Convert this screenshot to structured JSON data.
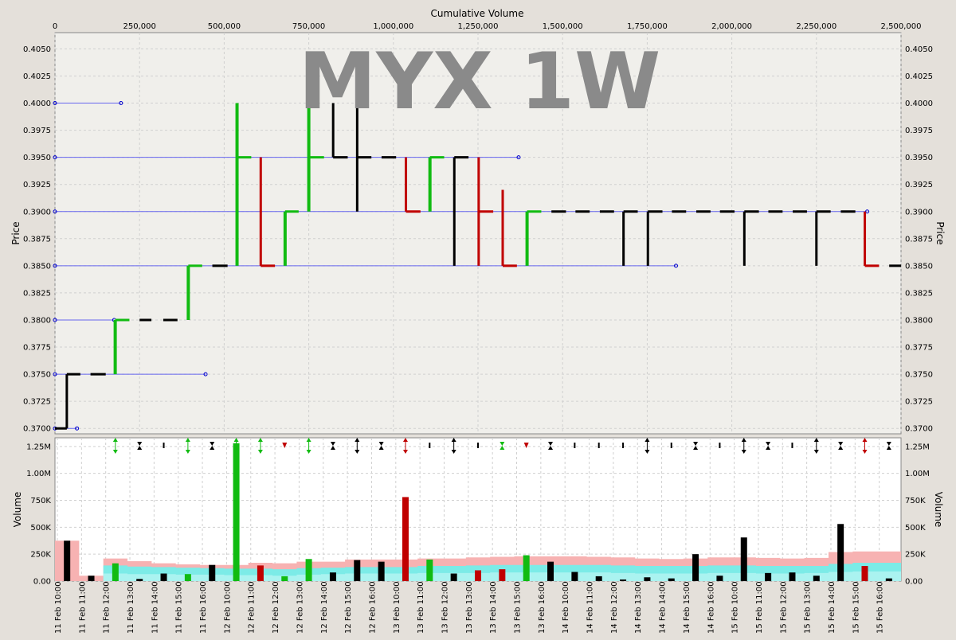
{
  "watermark": "MYX 1W",
  "top_axis_label": "Cumulative Volume",
  "price_axis_label": "Price",
  "volume_axis_label": "Volume",
  "colors": {
    "up": "#11bb11",
    "down": "#c00000",
    "flat": "#000000",
    "level": "#6666ee",
    "band_outer": "#f7b2b2",
    "band_inner": "#66f5f0",
    "panel": "#f0efeb",
    "grid": "#d0d0d0"
  },
  "chart_data": [
    {
      "type": "line",
      "name": "price-by-cumulative-volume",
      "x_title": "Cumulative Volume",
      "y_title": "Price",
      "xlim": [
        0,
        2500000
      ],
      "ylim": [
        0.3695,
        0.4065
      ],
      "x_ticks": [
        0,
        250000,
        500000,
        750000,
        1000000,
        1250000,
        1500000,
        1750000,
        2000000,
        2250000,
        2500000
      ],
      "x_tick_labels": [
        "0",
        "250,000",
        "500,000",
        "750,000",
        "1,000,000",
        "1,250,000",
        "1,500,000",
        "1,750,000",
        "2,000,000",
        "2,250,000",
        "2,500,000"
      ],
      "y_ticks": [
        0.405,
        0.4025,
        0.4,
        0.3975,
        0.395,
        0.3925,
        0.39,
        0.3875,
        0.385,
        0.3825,
        0.38,
        0.3775,
        0.375,
        0.3725,
        0.37
      ],
      "y_tick_labels": [
        "0.4050",
        "0.4025",
        "0.4000",
        "0.3975",
        "0.3950",
        "0.3925",
        "0.3900",
        "0.3875",
        "0.3850",
        "0.3825",
        "0.3800",
        "0.3775",
        "0.3750",
        "0.3725",
        "0.3700"
      ],
      "grid": true,
      "price_levels": [
        {
          "price": 0.4,
          "x_end": 195000
        },
        {
          "price": 0.395,
          "x_end": 1370000
        },
        {
          "price": 0.39,
          "x_end": 2400000
        },
        {
          "price": 0.385,
          "x_end": 1835000
        },
        {
          "price": 0.38,
          "x_end": 175000
        },
        {
          "price": 0.375,
          "x_end": 445000
        },
        {
          "price": 0.37,
          "x_end": 65000
        }
      ],
      "bars": [
        {
          "x0": 0,
          "x1": 35000,
          "open": 0.37,
          "high": 0.37,
          "low": 0.37,
          "close": 0.37,
          "dir": "flat"
        },
        {
          "x0": 35000,
          "x1": 75000,
          "open": 0.37,
          "high": 0.375,
          "low": 0.37,
          "close": 0.375,
          "dir": "flat"
        },
        {
          "x0": 105000,
          "x1": 150000,
          "open": 0.375,
          "high": 0.375,
          "low": 0.375,
          "close": 0.375,
          "dir": "flat"
        },
        {
          "x0": 178000,
          "x1": 220000,
          "open": 0.375,
          "high": 0.38,
          "low": 0.375,
          "close": 0.38,
          "dir": "up"
        },
        {
          "x0": 250000,
          "x1": 285000,
          "open": 0.38,
          "high": 0.38,
          "low": 0.38,
          "close": 0.38,
          "dir": "flat"
        },
        {
          "x0": 320000,
          "x1": 362000,
          "open": 0.38,
          "high": 0.38,
          "low": 0.38,
          "close": 0.38,
          "dir": "flat"
        },
        {
          "x0": 394000,
          "x1": 435000,
          "open": 0.38,
          "high": 0.385,
          "low": 0.38,
          "close": 0.385,
          "dir": "up"
        },
        {
          "x0": 465000,
          "x1": 510000,
          "open": 0.385,
          "high": 0.385,
          "low": 0.385,
          "close": 0.385,
          "dir": "flat"
        },
        {
          "x0": 538000,
          "x1": 580000,
          "open": 0.385,
          "high": 0.4,
          "low": 0.385,
          "close": 0.395,
          "dir": "up"
        },
        {
          "x0": 608000,
          "x1": 650000,
          "open": 0.395,
          "high": 0.395,
          "low": 0.385,
          "close": 0.385,
          "dir": "down"
        },
        {
          "x0": 680000,
          "x1": 720000,
          "open": 0.385,
          "high": 0.39,
          "low": 0.385,
          "close": 0.39,
          "dir": "up"
        },
        {
          "x0": 750000,
          "x1": 795000,
          "open": 0.39,
          "high": 0.4,
          "low": 0.39,
          "close": 0.395,
          "dir": "up"
        },
        {
          "x0": 822000,
          "x1": 865000,
          "open": 0.395,
          "high": 0.4,
          "low": 0.395,
          "close": 0.395,
          "dir": "flat"
        },
        {
          "x0": 893000,
          "x1": 935000,
          "open": 0.395,
          "high": 0.4,
          "low": 0.39,
          "close": 0.395,
          "dir": "flat"
        },
        {
          "x0": 965000,
          "x1": 1008000,
          "open": 0.395,
          "high": 0.395,
          "low": 0.395,
          "close": 0.395,
          "dir": "flat"
        },
        {
          "x0": 1037000,
          "x1": 1080000,
          "open": 0.395,
          "high": 0.395,
          "low": 0.39,
          "close": 0.39,
          "dir": "down"
        },
        {
          "x0": 1108000,
          "x1": 1150000,
          "open": 0.39,
          "high": 0.395,
          "low": 0.39,
          "close": 0.395,
          "dir": "up"
        },
        {
          "x0": 1180000,
          "x1": 1222000,
          "open": 0.395,
          "high": 0.395,
          "low": 0.385,
          "close": 0.395,
          "dir": "flat"
        },
        {
          "x0": 1252000,
          "x1": 1295000,
          "open": 0.395,
          "high": 0.395,
          "low": 0.385,
          "close": 0.39,
          "dir": "down"
        },
        {
          "x0": 1323000,
          "x1": 1365000,
          "open": 0.392,
          "high": 0.392,
          "low": 0.385,
          "close": 0.385,
          "dir": "down"
        },
        {
          "x0": 1395000,
          "x1": 1437000,
          "open": 0.385,
          "high": 0.39,
          "low": 0.385,
          "close": 0.39,
          "dir": "up"
        },
        {
          "x0": 1467000,
          "x1": 1510000,
          "open": 0.39,
          "high": 0.39,
          "low": 0.39,
          "close": 0.39,
          "dir": "flat"
        },
        {
          "x0": 1538000,
          "x1": 1580000,
          "open": 0.39,
          "high": 0.39,
          "low": 0.39,
          "close": 0.39,
          "dir": "flat"
        },
        {
          "x0": 1610000,
          "x1": 1652000,
          "open": 0.39,
          "high": 0.39,
          "low": 0.39,
          "close": 0.39,
          "dir": "flat"
        },
        {
          "x0": 1680000,
          "x1": 1722000,
          "open": 0.39,
          "high": 0.39,
          "low": 0.385,
          "close": 0.39,
          "dir": "flat"
        },
        {
          "x0": 1752000,
          "x1": 1795000,
          "open": 0.39,
          "high": 0.39,
          "low": 0.385,
          "close": 0.39,
          "dir": "flat"
        },
        {
          "x0": 1823000,
          "x1": 1865000,
          "open": 0.39,
          "high": 0.39,
          "low": 0.39,
          "close": 0.39,
          "dir": "flat"
        },
        {
          "x0": 1895000,
          "x1": 1937000,
          "open": 0.39,
          "high": 0.39,
          "low": 0.39,
          "close": 0.39,
          "dir": "flat"
        },
        {
          "x0": 1965000,
          "x1": 2008000,
          "open": 0.39,
          "high": 0.39,
          "low": 0.39,
          "close": 0.39,
          "dir": "flat"
        },
        {
          "x0": 2037000,
          "x1": 2080000,
          "open": 0.39,
          "high": 0.39,
          "low": 0.385,
          "close": 0.39,
          "dir": "flat"
        },
        {
          "x0": 2108000,
          "x1": 2150000,
          "open": 0.39,
          "high": 0.39,
          "low": 0.39,
          "close": 0.39,
          "dir": "flat"
        },
        {
          "x0": 2180000,
          "x1": 2222000,
          "open": 0.39,
          "high": 0.39,
          "low": 0.39,
          "close": 0.39,
          "dir": "flat"
        },
        {
          "x0": 2250000,
          "x1": 2292000,
          "open": 0.39,
          "high": 0.39,
          "low": 0.385,
          "close": 0.39,
          "dir": "flat"
        },
        {
          "x0": 2322000,
          "x1": 2365000,
          "open": 0.39,
          "high": 0.39,
          "low": 0.39,
          "close": 0.39,
          "dir": "flat"
        },
        {
          "x0": 2393000,
          "x1": 2435000,
          "open": 0.39,
          "high": 0.39,
          "low": 0.385,
          "close": 0.385,
          "dir": "down"
        },
        {
          "x0": 2465000,
          "x1": 2500000,
          "open": 0.385,
          "high": 0.385,
          "low": 0.385,
          "close": 0.385,
          "dir": "flat"
        }
      ]
    },
    {
      "type": "bar",
      "name": "volume",
      "y_title": "Volume",
      "ylim": [
        0,
        1330000
      ],
      "y_ticks": [
        0,
        250000,
        500000,
        750000,
        1000000,
        1250000
      ],
      "y_tick_labels": [
        "0.00",
        "250K",
        "500K",
        "750K",
        "1.00M",
        "1.25M"
      ],
      "grid": true,
      "categories": [
        "11 Feb 10:00",
        "11 Feb 11:00",
        "11 Feb 12:00",
        "11 Feb 13:00",
        "11 Feb 14:00",
        "11 Feb 15:00",
        "11 Feb 16:00",
        "12 Feb 10:00",
        "12 Feb 11:00",
        "12 Feb 12:00",
        "12 Feb 13:00",
        "12 Feb 14:00",
        "12 Feb 15:00",
        "12 Feb 16:00",
        "13 Feb 10:00",
        "13 Feb 11:00",
        "13 Feb 12:00",
        "13 Feb 13:00",
        "13 Feb 14:00",
        "13 Feb 15:00",
        "13 Feb 16:00",
        "14 Feb 10:00",
        "14 Feb 11:00",
        "14 Feb 12:00",
        "14 Feb 13:00",
        "14 Feb 14:00",
        "14 Feb 15:00",
        "14 Feb 16:00",
        "15 Feb 10:00",
        "15 Feb 11:00",
        "15 Feb 12:00",
        "15 Feb 13:00",
        "15 Feb 14:00",
        "15 Feb 15:00",
        "15 Feb 16:00"
      ],
      "values": [
        375000,
        50000,
        165000,
        20000,
        70000,
        65000,
        150000,
        1280000,
        145000,
        45000,
        205000,
        80000,
        195000,
        180000,
        780000,
        200000,
        70000,
        100000,
        110000,
        240000,
        180000,
        85000,
        45000,
        15000,
        35000,
        25000,
        250000,
        50000,
        405000,
        75000,
        80000,
        50000,
        530000,
        140000,
        25000
      ],
      "colors": [
        "flat",
        "flat",
        "up",
        "flat",
        "flat",
        "up",
        "flat",
        "up",
        "down",
        "up",
        "up",
        "flat",
        "flat",
        "flat",
        "down",
        "up",
        "flat",
        "down",
        "down",
        "up",
        "flat",
        "flat",
        "flat",
        "flat",
        "flat",
        "flat",
        "flat",
        "flat",
        "flat",
        "flat",
        "flat",
        "flat",
        "flat",
        "down",
        "flat"
      ],
      "band_outer": [
        375000,
        50000,
        210000,
        185000,
        165000,
        155000,
        150000,
        150000,
        170000,
        165000,
        180000,
        180000,
        200000,
        200000,
        200000,
        210000,
        210000,
        220000,
        225000,
        230000,
        230000,
        230000,
        225000,
        220000,
        210000,
        205000,
        210000,
        220000,
        220000,
        215000,
        210000,
        215000,
        270000,
        275000,
        275000
      ],
      "band_inner": [
        0,
        0,
        145000,
        135000,
        130000,
        125000,
        120000,
        115000,
        115000,
        110000,
        120000,
        125000,
        130000,
        130000,
        130000,
        140000,
        140000,
        145000,
        150000,
        150000,
        150000,
        150000,
        150000,
        145000,
        140000,
        140000,
        140000,
        145000,
        145000,
        140000,
        140000,
        140000,
        160000,
        170000,
        170000
      ],
      "band_core": [
        0,
        0,
        70000,
        65000,
        65000,
        60000,
        60000,
        55000,
        55000,
        50000,
        60000,
        65000,
        70000,
        70000,
        70000,
        75000,
        75000,
        75000,
        80000,
        80000,
        80000,
        80000,
        80000,
        75000,
        70000,
        70000,
        70000,
        75000,
        75000,
        70000,
        70000,
        75000,
        85000,
        90000,
        90000
      ],
      "markers": [
        "",
        "",
        "up-down",
        "flat-bowtie",
        "flat",
        "up-down",
        "flat-bowtie",
        "up-down",
        "up-down",
        "down",
        "up-down",
        "flat-bowtie",
        "up-down",
        "flat-bowtie",
        "up-down",
        "flat",
        "up-down",
        "flat",
        "flat-bowtie",
        "down",
        "flat-bowtie",
        "flat",
        "flat",
        "flat",
        "up-down",
        "flat",
        "flat-bowtie",
        "flat",
        "up-down",
        "flat-bowtie",
        "flat",
        "up-down",
        "flat-bowtie",
        "up-down",
        "flat-bowtie"
      ],
      "marker_colors": [
        "",
        "",
        "up",
        "flat",
        "flat",
        "up",
        "flat",
        "up",
        "up",
        "down",
        "up",
        "flat",
        "flat",
        "flat",
        "down",
        "flat",
        "flat",
        "flat",
        "up",
        "down",
        "flat",
        "flat",
        "flat",
        "flat",
        "flat",
        "flat",
        "flat",
        "flat",
        "flat",
        "flat",
        "flat",
        "flat",
        "flat",
        "down",
        "flat"
      ]
    }
  ]
}
